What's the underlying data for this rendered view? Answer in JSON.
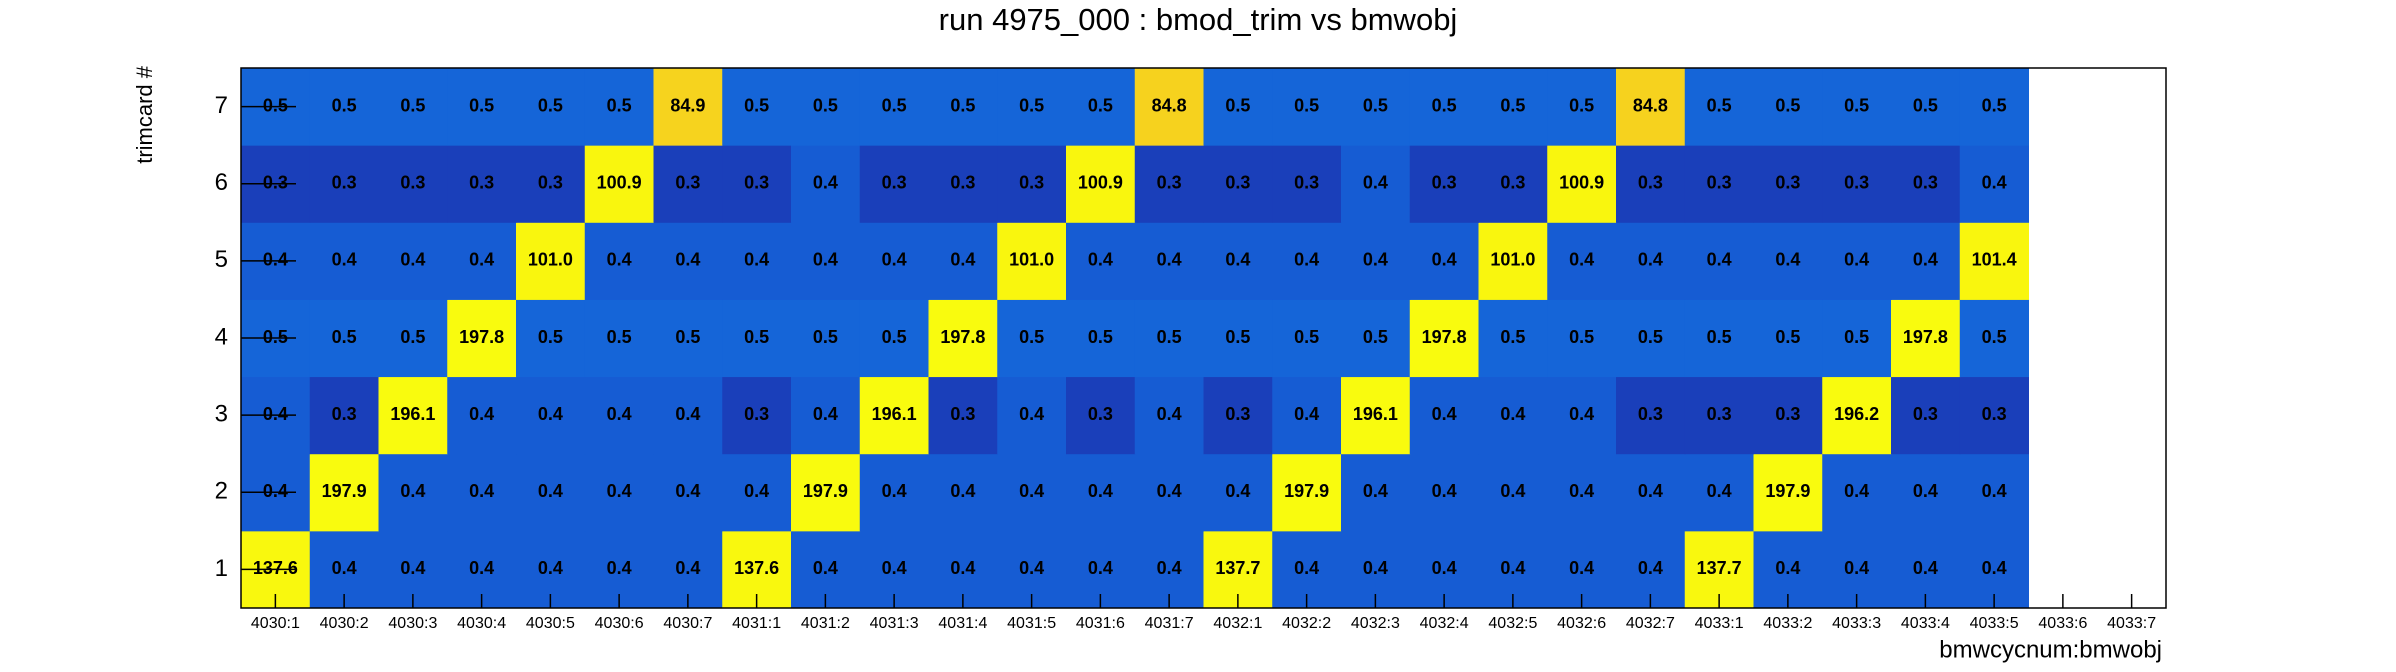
{
  "chart_data": {
    "type": "heatmap",
    "title": "run 4975_000 : bmod_trim vs bmwobj",
    "x_label": "bmwcycnum:bmwobj",
    "y_label": "trimcard #",
    "categories": [
      "4030:1",
      "4030:2",
      "4030:3",
      "4030:4",
      "4030:5",
      "4030:6",
      "4030:7",
      "4031:1",
      "4031:2",
      "4031:3",
      "4031:4",
      "4031:5",
      "4031:6",
      "4031:7",
      "4032:1",
      "4032:2",
      "4032:3",
      "4032:4",
      "4032:5",
      "4032:6",
      "4032:7",
      "4033:1",
      "4033:2",
      "4033:3",
      "4033:4",
      "4033:5",
      "4033:6",
      "4033:7"
    ],
    "y_categories": [
      "1",
      "2",
      "3",
      "4",
      "5",
      "6",
      "7"
    ],
    "values": [
      [
        137.6,
        0.4,
        0.4,
        0.4,
        0.4,
        0.4,
        0.4,
        137.6,
        0.4,
        0.4,
        0.4,
        0.4,
        0.4,
        0.4,
        137.7,
        0.4,
        0.4,
        0.4,
        0.4,
        0.4,
        0.4,
        137.7,
        0.4,
        0.4,
        0.4,
        0.4,
        null,
        null
      ],
      [
        0.4,
        197.9,
        0.4,
        0.4,
        0.4,
        0.4,
        0.4,
        0.4,
        197.9,
        0.4,
        0.4,
        0.4,
        0.4,
        0.4,
        0.4,
        197.9,
        0.4,
        0.4,
        0.4,
        0.4,
        0.4,
        0.4,
        197.9,
        0.4,
        0.4,
        0.4,
        null,
        null
      ],
      [
        0.4,
        0.3,
        196.1,
        0.4,
        0.4,
        0.4,
        0.4,
        0.3,
        0.4,
        196.1,
        0.3,
        0.4,
        0.3,
        0.4,
        0.3,
        0.4,
        196.1,
        0.4,
        0.4,
        0.4,
        0.3,
        0.3,
        0.3,
        196.2,
        0.3,
        0.3,
        null,
        null
      ],
      [
        0.5,
        0.5,
        0.5,
        197.8,
        0.5,
        0.5,
        0.5,
        0.5,
        0.5,
        0.5,
        197.8,
        0.5,
        0.5,
        0.5,
        0.5,
        0.5,
        0.5,
        197.8,
        0.5,
        0.5,
        0.5,
        0.5,
        0.5,
        0.5,
        197.8,
        0.5,
        null,
        null
      ],
      [
        0.4,
        0.4,
        0.4,
        0.4,
        101.0,
        0.4,
        0.4,
        0.4,
        0.4,
        0.4,
        0.4,
        101.0,
        0.4,
        0.4,
        0.4,
        0.4,
        0.4,
        0.4,
        101.0,
        0.4,
        0.4,
        0.4,
        0.4,
        0.4,
        0.4,
        101.4,
        null,
        null
      ],
      [
        0.3,
        0.3,
        0.3,
        0.3,
        0.3,
        100.9,
        0.3,
        0.3,
        0.4,
        0.3,
        0.3,
        0.3,
        100.9,
        0.3,
        0.3,
        0.3,
        0.4,
        0.3,
        0.3,
        100.9,
        0.3,
        0.3,
        0.3,
        0.3,
        0.3,
        0.4,
        null,
        null
      ],
      [
        0.5,
        0.5,
        0.5,
        0.5,
        0.5,
        0.5,
        84.9,
        0.5,
        0.5,
        0.5,
        0.5,
        0.5,
        0.5,
        84.8,
        0.5,
        0.5,
        0.5,
        0.5,
        0.5,
        0.5,
        84.8,
        0.5,
        0.5,
        0.5,
        0.5,
        0.5,
        null,
        null
      ]
    ],
    "value_labels": [
      [
        "137.6",
        "0.4",
        "0.4",
        "0.4",
        "0.4",
        "0.4",
        "0.4",
        "137.6",
        "0.4",
        "0.4",
        "0.4",
        "0.4",
        "0.4",
        "0.4",
        "137.7",
        "0.4",
        "0.4",
        "0.4",
        "0.4",
        "0.4",
        "0.4",
        "137.7",
        "0.4",
        "0.4",
        "0.4",
        "0.4",
        null,
        null
      ],
      [
        "0.4",
        "197.9",
        "0.4",
        "0.4",
        "0.4",
        "0.4",
        "0.4",
        "0.4",
        "197.9",
        "0.4",
        "0.4",
        "0.4",
        "0.4",
        "0.4",
        "0.4",
        "197.9",
        "0.4",
        "0.4",
        "0.4",
        "0.4",
        "0.4",
        "0.4",
        "197.9",
        "0.4",
        "0.4",
        "0.4",
        null,
        null
      ],
      [
        "0.4",
        "0.3",
        "196.1",
        "0.4",
        "0.4",
        "0.4",
        "0.4",
        "0.3",
        "0.4",
        "196.1",
        "0.3",
        "0.4",
        "0.3",
        "0.4",
        "0.3",
        "0.4",
        "196.1",
        "0.4",
        "0.4",
        "0.4",
        "0.3",
        "0.3",
        "0.3",
        "196.2",
        "0.3",
        "0.3",
        null,
        null
      ],
      [
        "0.5",
        "0.5",
        "0.5",
        "197.8",
        "0.5",
        "0.5",
        "0.5",
        "0.5",
        "0.5",
        "0.5",
        "197.8",
        "0.5",
        "0.5",
        "0.5",
        "0.5",
        "0.5",
        "0.5",
        "197.8",
        "0.5",
        "0.5",
        "0.5",
        "0.5",
        "0.5",
        "0.5",
        "197.8",
        "0.5",
        null,
        null
      ],
      [
        "0.4",
        "0.4",
        "0.4",
        "0.4",
        "101.0",
        "0.4",
        "0.4",
        "0.4",
        "0.4",
        "0.4",
        "0.4",
        "101.0",
        "0.4",
        "0.4",
        "0.4",
        "0.4",
        "0.4",
        "0.4",
        "101.0",
        "0.4",
        "0.4",
        "0.4",
        "0.4",
        "0.4",
        "0.4",
        "101.4",
        null,
        null
      ],
      [
        "0.3",
        "0.3",
        "0.3",
        "0.3",
        "0.3",
        "100.9",
        "0.3",
        "0.3",
        "0.4",
        "0.3",
        "0.3",
        "0.3",
        "100.9",
        "0.3",
        "0.3",
        "0.3",
        "0.4",
        "0.3",
        "0.3",
        "100.9",
        "0.3",
        "0.3",
        "0.3",
        "0.3",
        "0.3",
        "0.4",
        null,
        null
      ],
      [
        "0.5",
        "0.5",
        "0.5",
        "0.5",
        "0.5",
        "0.5",
        "84.9",
        "0.5",
        "0.5",
        "0.5",
        "0.5",
        "0.5",
        "0.5",
        "84.8",
        "0.5",
        "0.5",
        "0.5",
        "0.5",
        "0.5",
        "0.5",
        "84.8",
        "0.5",
        "0.5",
        "0.5",
        "0.5",
        "0.5",
        null,
        null
      ]
    ],
    "log_color_scale": true,
    "colormap": [
      [
        0,
        "#1a3fba"
      ],
      [
        0.05,
        "#1560d6"
      ],
      [
        0.1,
        "#1568da"
      ],
      [
        0.5,
        "#1ab0b0"
      ],
      [
        0.86,
        "#f5c226"
      ],
      [
        0.89,
        "#f9f60e"
      ],
      [
        1,
        "#f9fb0e"
      ]
    ]
  }
}
